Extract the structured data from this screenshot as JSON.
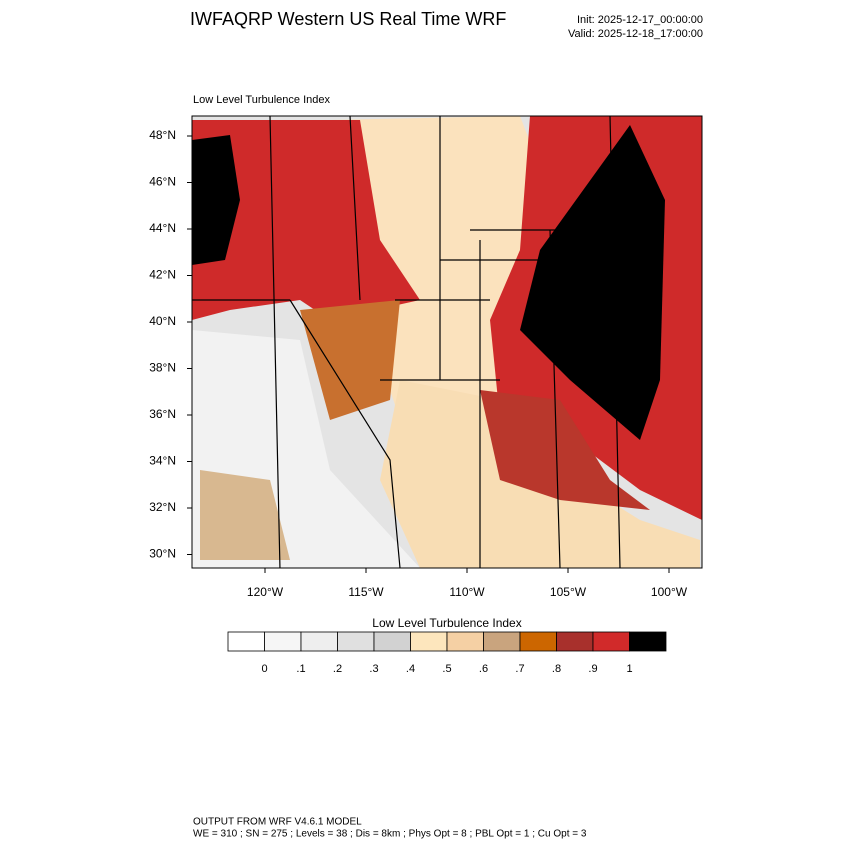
{
  "header": {
    "title": "IWFAQRP Western US Real Time WRF",
    "init": "Init: 2025-12-17_00:00:00",
    "valid": "Valid: 2025-12-18_17:00:00"
  },
  "map": {
    "subtitle": "Low Level Turbulence Index",
    "lat_labels": [
      "48°N",
      "46°N",
      "44°N",
      "42°N",
      "40°N",
      "38°N",
      "36°N",
      "34°N",
      "32°N",
      "30°N"
    ],
    "lon_labels": [
      "120°W",
      "115°W",
      "110°W",
      "105°W",
      "100°W"
    ]
  },
  "colorbar": {
    "title": "Low Level Turbulence Index",
    "colors": [
      "#ffffff",
      "#f6f6f6",
      "#eeeeee",
      "#e0e0e0",
      "#d2d2d2",
      "#fde6bd",
      "#f5d0a4",
      "#c9a47e",
      "#cc6600",
      "#a8302c",
      "#d12a2a",
      "#000000"
    ],
    "labels": [
      "0",
      ".1",
      ".2",
      ".3",
      ".4",
      ".5",
      ".6",
      ".7",
      ".8",
      ".9",
      "1"
    ]
  },
  "footer": {
    "line1": "OUTPUT FROM WRF V4.6.1 MODEL",
    "line2": "WE = 310 ; SN = 275 ; Levels = 38 ; Dis = 8km ; Phys Opt = 8 ; PBL Opt = 1 ; Cu Opt = 3"
  }
}
